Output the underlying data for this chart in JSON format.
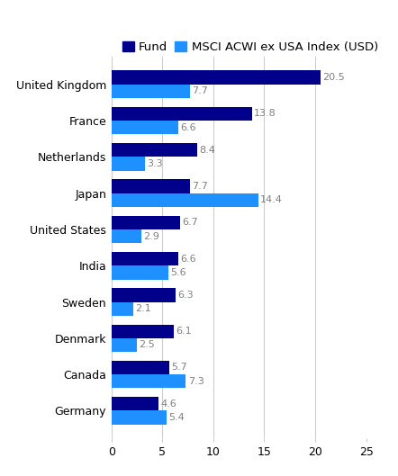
{
  "categories": [
    "United Kingdom",
    "France",
    "Netherlands",
    "Japan",
    "United States",
    "India",
    "Sweden",
    "Denmark",
    "Canada",
    "Germany"
  ],
  "fund_values": [
    20.5,
    13.8,
    8.4,
    7.7,
    6.7,
    6.6,
    6.3,
    6.1,
    5.7,
    4.6
  ],
  "index_values": [
    7.7,
    6.6,
    3.3,
    14.4,
    2.9,
    5.6,
    2.1,
    2.5,
    7.3,
    5.4
  ],
  "fund_color": "#00008B",
  "index_color": "#1E90FF",
  "legend_labels": [
    "Fund",
    "MSCI ACWI ex USA Index (USD)"
  ],
  "xlim": [
    0,
    25
  ],
  "xticks": [
    0,
    5,
    10,
    15,
    20,
    25
  ],
  "bar_height": 0.38,
  "label_fontsize": 9,
  "tick_fontsize": 9,
  "legend_fontsize": 9.5,
  "value_fontsize": 8,
  "value_color": "#808080",
  "background_color": "#ffffff",
  "grid_color": "#cccccc"
}
